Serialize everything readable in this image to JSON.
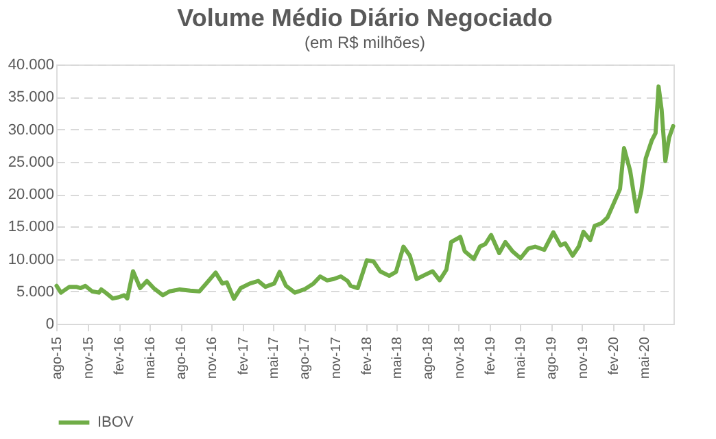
{
  "chart_data": {
    "type": "line",
    "title": "Volume Médio Diário Negociado",
    "subtitle": "(em R$ milhões)",
    "x": [
      "2015-08-01",
      "2015-08-14",
      "2015-09-08",
      "2015-09-28",
      "2015-10-11",
      "2015-10-25",
      "2015-11-14",
      "2015-12-04",
      "2015-12-11",
      "2015-12-24",
      "2016-01-14",
      "2016-02-01",
      "2016-02-17",
      "2016-02-26",
      "2016-03-14",
      "2016-04-04",
      "2016-04-24",
      "2016-05-14",
      "2016-06-10",
      "2016-06-30",
      "2016-07-30",
      "2016-08-30",
      "2016-09-26",
      "2016-10-16",
      "2016-11-13",
      "2016-12-03",
      "2016-12-16",
      "2017-01-06",
      "2017-01-26",
      "2017-02-22",
      "2017-03-19",
      "2017-04-09",
      "2017-05-05",
      "2017-05-21",
      "2017-06-09",
      "2017-07-05",
      "2017-08-02",
      "2017-08-29",
      "2017-09-18",
      "2017-10-08",
      "2017-10-28",
      "2017-11-18",
      "2017-12-08",
      "2017-12-17",
      "2018-01-07",
      "2018-02-03",
      "2018-02-23",
      "2018-03-14",
      "2018-04-10",
      "2018-04-30",
      "2018-05-22",
      "2018-06-10",
      "2018-06-30",
      "2018-07-27",
      "2018-08-16",
      "2018-09-06",
      "2018-09-26",
      "2018-10-10",
      "2018-11-06",
      "2018-11-19",
      "2018-12-16",
      "2019-01-03",
      "2019-01-19",
      "2019-02-05",
      "2019-03-01",
      "2019-03-19",
      "2019-04-09",
      "2019-05-03",
      "2019-05-26",
      "2019-06-15",
      "2019-07-12",
      "2019-08-08",
      "2019-08-29",
      "2019-09-12",
      "2019-10-04",
      "2019-10-22",
      "2019-11-05",
      "2019-11-25",
      "2019-12-08",
      "2019-12-28",
      "2020-01-15",
      "2020-02-01",
      "2020-02-21",
      "2020-03-04",
      "2020-03-22",
      "2020-04-10",
      "2020-04-24",
      "2020-05-07",
      "2020-05-25",
      "2020-06-05",
      "2020-06-14",
      "2020-06-23",
      "2020-07-04",
      "2020-07-15",
      "2020-07-27"
    ],
    "series": [
      {
        "name": "IBOV",
        "color": "#70ad47",
        "values": [
          5850,
          4800,
          5700,
          5700,
          5500,
          5850,
          5000,
          4800,
          5300,
          4800,
          3900,
          4100,
          4400,
          3900,
          8100,
          5500,
          6600,
          5500,
          4400,
          5000,
          5300,
          5100,
          5000,
          6200,
          7900,
          6200,
          6400,
          3850,
          5500,
          6200,
          6600,
          5700,
          6200,
          8000,
          5850,
          4800,
          5300,
          6200,
          7300,
          6700,
          6900,
          7300,
          6600,
          5850,
          5500,
          9800,
          9600,
          8100,
          7400,
          8000,
          11900,
          10500,
          6900,
          7600,
          8100,
          6700,
          8350,
          12600,
          13400,
          11200,
          10000,
          11900,
          12300,
          13700,
          10900,
          12600,
          11200,
          10100,
          11600,
          11900,
          11400,
          14100,
          12100,
          12400,
          10500,
          11900,
          14200,
          12900,
          15100,
          15500,
          16400,
          18400,
          20800,
          27100,
          23600,
          17300,
          20500,
          25500,
          28300,
          29400,
          36600,
          33000,
          25100,
          28700,
          30500
        ]
      }
    ],
    "xlim": [
      "2015-07-31",
      "2020-07-28"
    ],
    "xticks": [
      {
        "value": "2015-08-01",
        "label": "ago-15"
      },
      {
        "value": "2015-11-01",
        "label": "nov-15"
      },
      {
        "value": "2016-02-01",
        "label": "fev-16"
      },
      {
        "value": "2016-05-01",
        "label": "mai-16"
      },
      {
        "value": "2016-08-01",
        "label": "ago-16"
      },
      {
        "value": "2016-11-01",
        "label": "nov-16"
      },
      {
        "value": "2017-02-01",
        "label": "fev-17"
      },
      {
        "value": "2017-05-01",
        "label": "mai-17"
      },
      {
        "value": "2017-08-01",
        "label": "ago-17"
      },
      {
        "value": "2017-11-01",
        "label": "nov-17"
      },
      {
        "value": "2018-02-01",
        "label": "fev-18"
      },
      {
        "value": "2018-05-01",
        "label": "mai-18"
      },
      {
        "value": "2018-08-01",
        "label": "ago-18"
      },
      {
        "value": "2018-11-01",
        "label": "nov-18"
      },
      {
        "value": "2019-02-01",
        "label": "fev-19"
      },
      {
        "value": "2019-05-01",
        "label": "mai-19"
      },
      {
        "value": "2019-08-01",
        "label": "ago-19"
      },
      {
        "value": "2019-11-01",
        "label": "nov-19"
      },
      {
        "value": "2020-02-01",
        "label": "fev-20"
      },
      {
        "value": "2020-05-01",
        "label": "mai-20"
      }
    ],
    "ylim": [
      0,
      40000
    ],
    "yticks": [
      0,
      {
        "value": 5000,
        "label": "5.000"
      },
      {
        "value": 10000,
        "label": "10.000"
      },
      {
        "value": 15000,
        "label": "15.000"
      },
      {
        "value": 20000,
        "label": "20.000"
      },
      {
        "value": 25000,
        "label": "25.000"
      },
      {
        "value": 30000,
        "label": "30.000"
      },
      {
        "value": 35000,
        "label": "35.000"
      },
      {
        "value": 40000,
        "label": "40.000"
      }
    ],
    "grid": "y",
    "legend": "bottom",
    "marker": "none",
    "line_style": "solid"
  }
}
